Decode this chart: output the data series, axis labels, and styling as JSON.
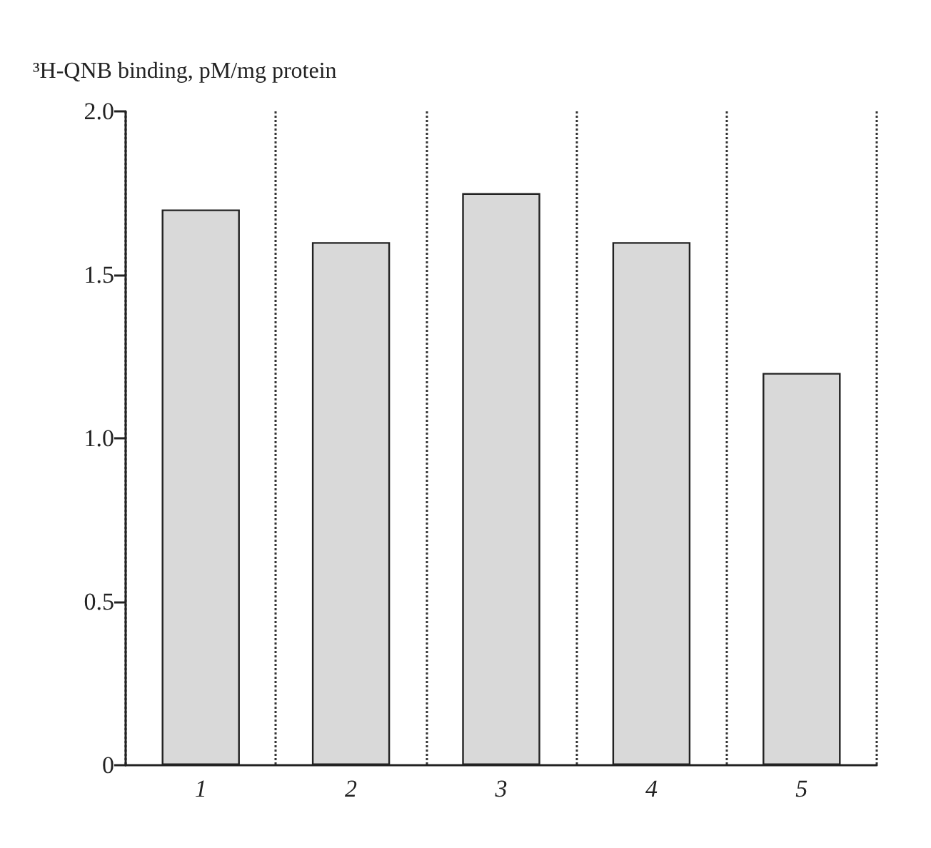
{
  "chart_data": {
    "type": "bar",
    "ylabel": "³H-QNB binding, pM/mg protein",
    "categories": [
      "1",
      "2",
      "3",
      "4",
      "5"
    ],
    "values": [
      1.7,
      1.6,
      1.75,
      1.6,
      1.2
    ],
    "color": "#d9d9d9",
    "ylim": [
      0,
      2.0
    ],
    "yticks": [
      0,
      0.5,
      {
        "value": 1.0,
        "label": "1.0"
      },
      1.5,
      {
        "value": 2.0,
        "label": "2.0"
      }
    ],
    "grid": "x"
  }
}
